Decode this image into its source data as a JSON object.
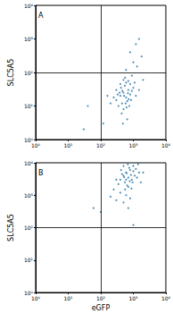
{
  "chart_data": [
    {
      "type": "scatter",
      "label": "A",
      "y_label": "SLC5A5",
      "log": true,
      "grid": false,
      "color": "#1f6fa0",
      "marker": "circle",
      "xlim": [
        1,
        10000
      ],
      "ylim": [
        1,
        10000
      ],
      "xticks": [
        {
          "value": 1,
          "label": "10⁰"
        },
        {
          "value": 10,
          "label": "10¹"
        },
        {
          "value": 100,
          "label": "10²"
        },
        {
          "value": 1000,
          "label": "10³"
        },
        {
          "value": 10000,
          "label": "10⁴"
        }
      ],
      "yticks": [
        {
          "value": 1,
          "label": "10⁰"
        },
        {
          "value": 10,
          "label": "10¹"
        },
        {
          "value": 100,
          "label": "10²"
        },
        {
          "value": 1000,
          "label": "10³"
        },
        {
          "value": 10000,
          "label": "10⁴"
        }
      ],
      "thresholds": {
        "x": 100,
        "y": 100
      },
      "x": [
        300,
        400,
        500,
        600,
        450,
        700,
        550,
        350,
        800,
        650,
        500,
        420,
        900,
        600,
        380,
        720,
        520,
        460,
        580,
        680,
        1000,
        1200,
        250,
        300,
        500,
        800,
        620,
        440,
        560,
        750,
        850,
        400,
        330,
        700,
        1100,
        1500,
        200,
        480,
        650,
        900,
        1000,
        1300,
        800,
        1200,
        1500,
        160,
        2000,
        600,
        40,
        30,
        120,
        1800
      ],
      "values": [
        15,
        20,
        25,
        18,
        12,
        30,
        40,
        10,
        22,
        14,
        8,
        35,
        28,
        50,
        25,
        16,
        20,
        28,
        12,
        24,
        35,
        20,
        18,
        30,
        60,
        45,
        9,
        6,
        70,
        10,
        15,
        45,
        22,
        55,
        50,
        30,
        12,
        3,
        4,
        80,
        200,
        150,
        400,
        700,
        1000,
        20,
        60,
        120,
        10,
        2,
        3,
        300
      ]
    },
    {
      "type": "scatter",
      "label": "B",
      "y_label": "SLC5A5",
      "x_label": "eGFP",
      "log": true,
      "grid": false,
      "color": "#1f6fa0",
      "marker": "circle",
      "xlim": [
        1,
        10000
      ],
      "ylim": [
        1,
        10000
      ],
      "xticks": [
        {
          "value": 1,
          "label": "10⁰"
        },
        {
          "value": 10,
          "label": "10¹"
        },
        {
          "value": 100,
          "label": "10²"
        },
        {
          "value": 1000,
          "label": "10³"
        },
        {
          "value": 10000,
          "label": "10⁴"
        }
      ],
      "yticks": [
        {
          "value": 1,
          "label": "10⁰"
        },
        {
          "value": 10,
          "label": "10¹"
        },
        {
          "value": 100,
          "label": "10²"
        },
        {
          "value": 1000,
          "label": "10³"
        },
        {
          "value": 10000,
          "label": "10⁴"
        }
      ],
      "thresholds": {
        "x": 100,
        "y": 100
      },
      "x": [
        400,
        500,
        600,
        700,
        550,
        800,
        650,
        450,
        900,
        1000,
        750,
        500,
        600,
        850,
        700,
        1100,
        350,
        420,
        560,
        950,
        1200,
        1300,
        680,
        780,
        520,
        620,
        300,
        880,
        1000,
        1500,
        400,
        600,
        800,
        250,
        200,
        1700,
        1400,
        500,
        100,
        60,
        1000,
        2000,
        700,
        300
      ],
      "values": [
        3000,
        4000,
        5000,
        3500,
        2500,
        6000,
        2000,
        4500,
        3000,
        5500,
        7000,
        8000,
        3000,
        4200,
        1800,
        4000,
        2200,
        6000,
        1500,
        2500,
        6500,
        3500,
        9000,
        2700,
        3600,
        4800,
        3000,
        1600,
        8000,
        5000,
        1200,
        1000,
        800,
        1500,
        900,
        2500,
        9000,
        600,
        300,
        400,
        120,
        5000,
        400,
        700
      ]
    }
  ]
}
